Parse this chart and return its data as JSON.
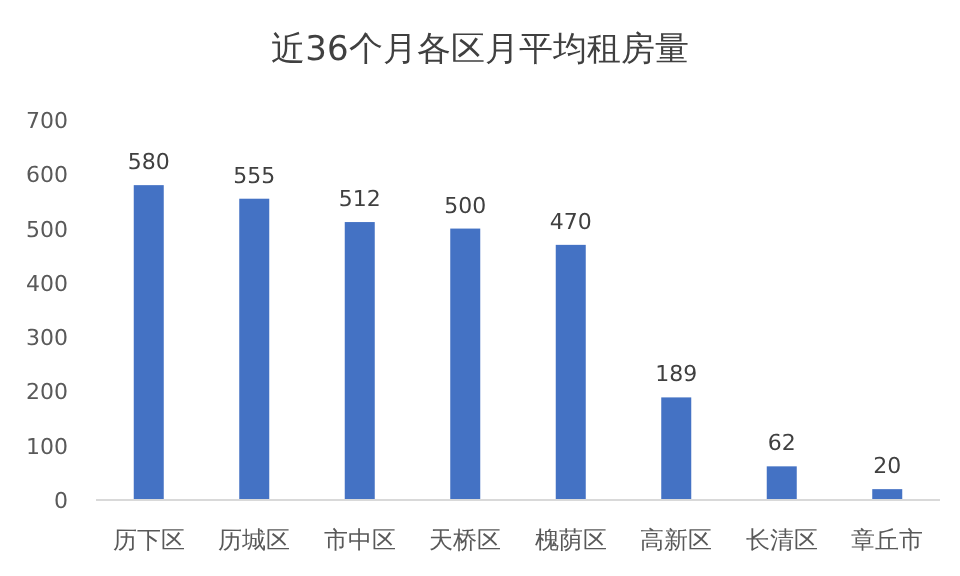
{
  "chart_data": {
    "type": "bar",
    "title": "近36个月各区月平均租房量",
    "categories": [
      "历下区",
      "历城区",
      "市中区",
      "天桥区",
      "槐荫区",
      "高新区",
      "长清区",
      "章丘市"
    ],
    "values": [
      580,
      555,
      512,
      500,
      470,
      189,
      62,
      20
    ],
    "color": "#4472c4",
    "ylim": [
      0,
      700
    ],
    "yticks": [
      0,
      100,
      200,
      300,
      400,
      500,
      600,
      700
    ],
    "data_labels": true
  }
}
